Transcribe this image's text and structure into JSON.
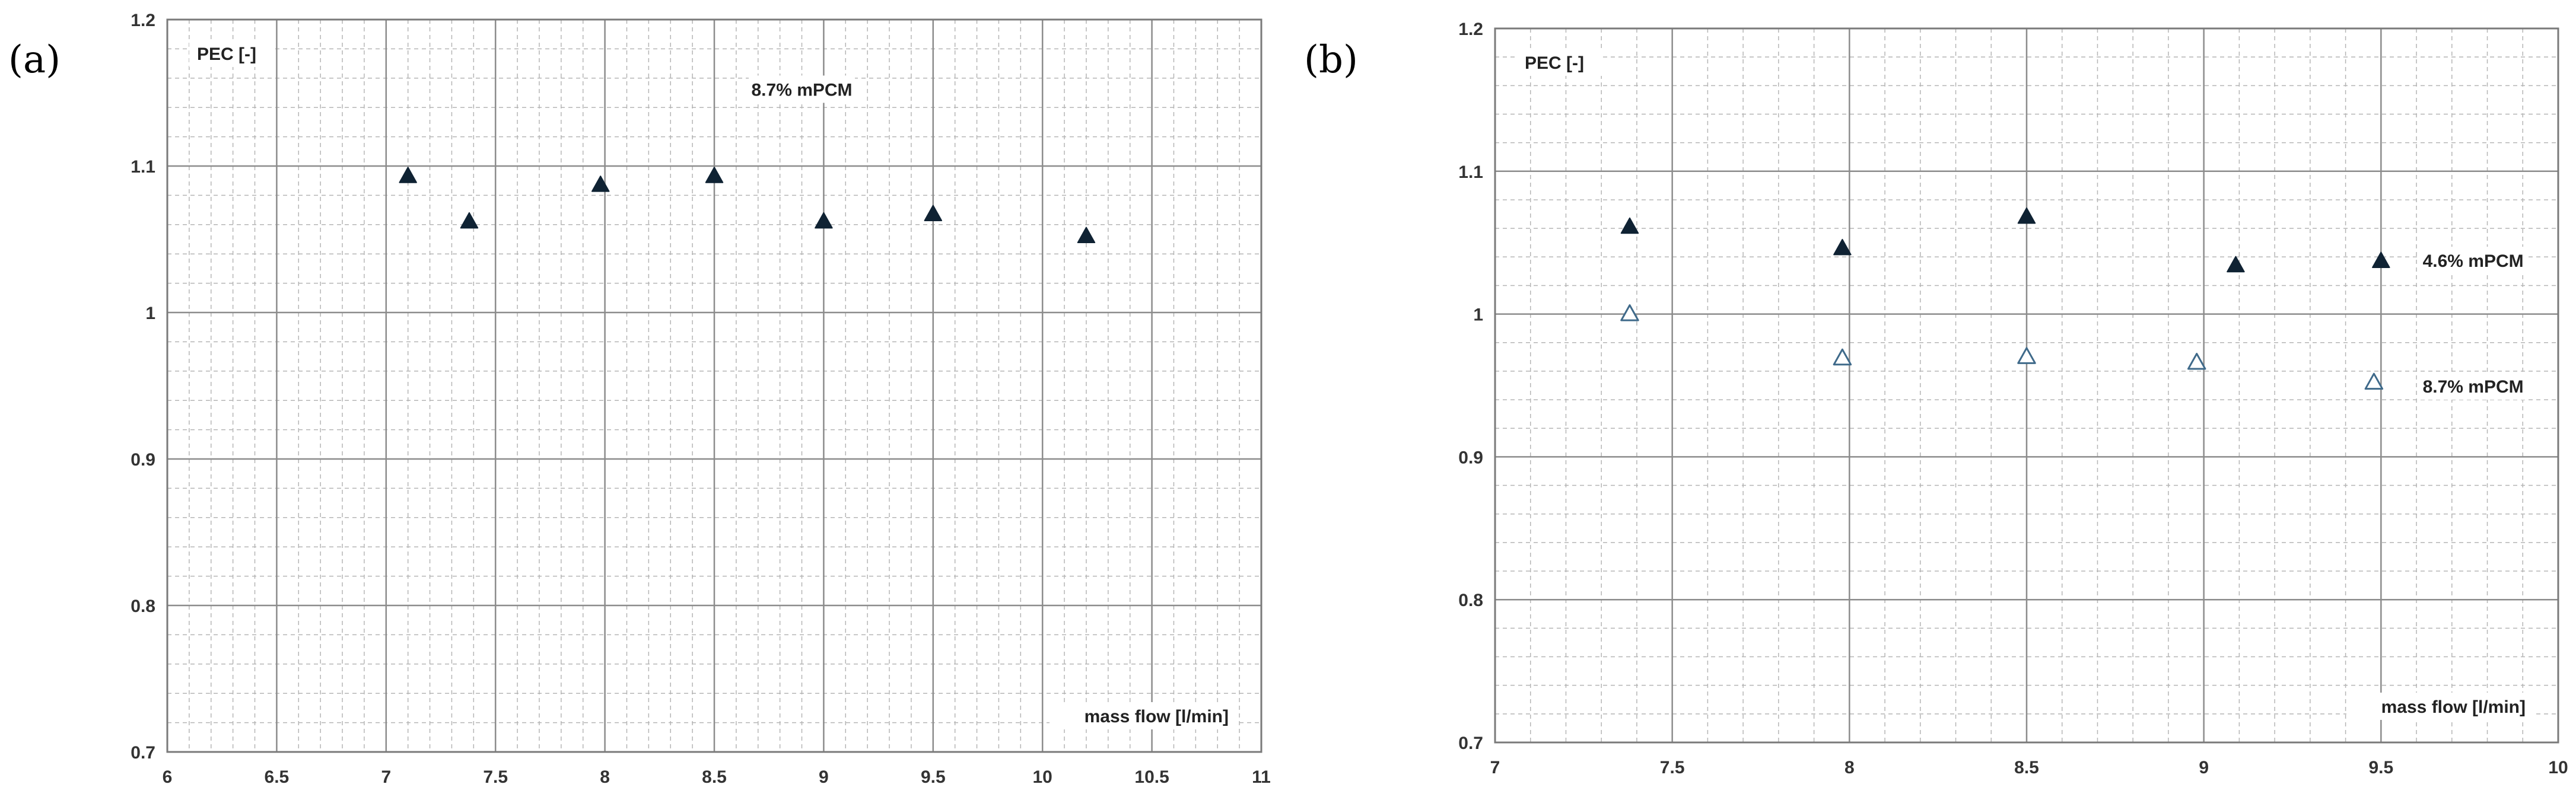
{
  "chart_data": [
    {
      "type": "scatter",
      "panel_label": "(a)",
      "ylabel": "PEC [-]",
      "xlabel": "mass flow [l/min]",
      "xlim": [
        6,
        11
      ],
      "ylim": [
        0.7,
        1.2
      ],
      "x_major": 0.5,
      "y_major": 0.1,
      "x_ticks": [
        "6",
        "6.5",
        "7",
        "7.5",
        "8",
        "8.5",
        "9",
        "9.5",
        "10",
        "10.5",
        "11"
      ],
      "y_ticks": [
        "0.7",
        "0.8",
        "0.9",
        "1",
        "1.1",
        "1.2"
      ],
      "series": [
        {
          "name": "8.7% mPCM",
          "marker": "filled-triangle",
          "x": [
            7.1,
            7.38,
            7.98,
            8.5,
            9.0,
            9.5,
            10.2
          ],
          "y": [
            1.093,
            1.062,
            1.087,
            1.093,
            1.062,
            1.067,
            1.052
          ]
        }
      ],
      "annotations": [
        {
          "text": "8.7% mPCM",
          "x": 8.9,
          "y": 1.148
        }
      ]
    },
    {
      "type": "scatter",
      "panel_label": "(b)",
      "ylabel": "PEC [-]",
      "xlabel": "mass flow [l/min]",
      "xlim": [
        7,
        10
      ],
      "ylim": [
        0.7,
        1.2
      ],
      "x_major": 0.5,
      "y_major": 0.1,
      "x_ticks": [
        "7",
        "7.5",
        "8",
        "8.5",
        "9",
        "9.5",
        "10"
      ],
      "y_ticks": [
        "0.7",
        "0.8",
        "0.9",
        "1",
        "1.1",
        "1.2"
      ],
      "series": [
        {
          "name": "4.6% mPCM",
          "marker": "filled-triangle",
          "x": [
            7.38,
            7.98,
            8.5,
            9.09,
            9.5
          ],
          "y": [
            1.061,
            1.046,
            1.068,
            1.034,
            1.037
          ]
        },
        {
          "name": "8.7% mPCM",
          "marker": "open-triangle",
          "x": [
            7.38,
            7.98,
            8.5,
            8.98,
            9.48
          ],
          "y": [
            1.0,
            0.969,
            0.97,
            0.966,
            0.952
          ]
        }
      ],
      "annotations": [
        {
          "text": "4.6% mPCM",
          "x": 9.76,
          "y": 1.033
        },
        {
          "text": "8.7% mPCM",
          "x": 9.76,
          "y": 0.945
        }
      ]
    }
  ]
}
